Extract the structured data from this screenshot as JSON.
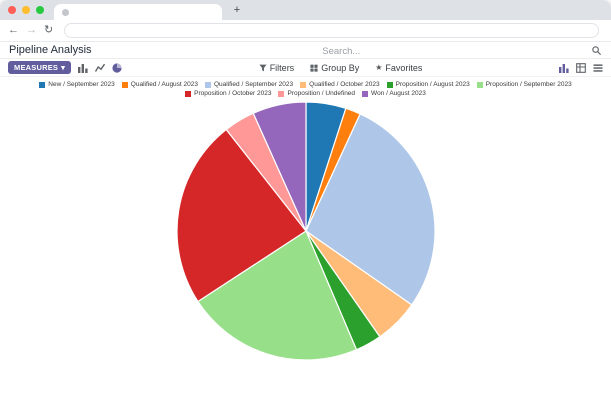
{
  "browser": {
    "new_tab_button": "+",
    "back": "←",
    "forward": "→",
    "reload": "↻"
  },
  "page": {
    "title": "Pipeline Analysis",
    "search_placeholder": "Search...",
    "accent_color": "#625e9e",
    "controls": {
      "measures": "MEASURES",
      "measures_caret": "▾",
      "filters": "Filters",
      "group_by": "Group By",
      "favorites": "Favorites",
      "favorites_star": "★"
    }
  },
  "chart_data": {
    "type": "pie",
    "title": "",
    "legend_position": "top",
    "labels": [
      "New / September 2023",
      "Qualified / August 2023",
      "Qualified / September 2023",
      "Qualified / October 2023",
      "Proposition / August 2023",
      "Proposition / September 2023",
      "Proposition / October 2023",
      "Proposition / Undefined",
      "Won / August 2023"
    ],
    "values": [
      5.0,
      1.9,
      27.8,
      5.6,
      3.3,
      22.2,
      23.6,
      3.9,
      6.7
    ],
    "colors": [
      "#1f77b4",
      "#ff7f0e",
      "#aec7e8",
      "#ffbb78",
      "#2ca02c",
      "#98df8a",
      "#d62728",
      "#ff9896",
      "#9467bd"
    ],
    "start_angle_deg": -90,
    "units": "percent"
  }
}
